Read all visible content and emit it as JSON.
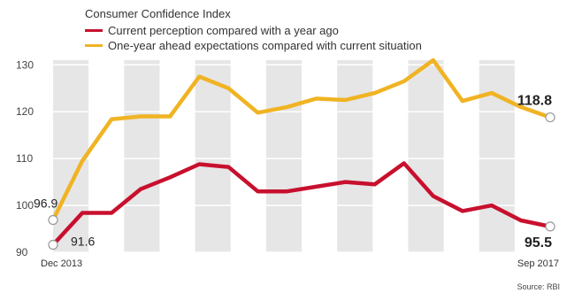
{
  "chart_data": {
    "type": "line",
    "title": "Consumer Confidence Index",
    "x_start_label": "Dec 2013",
    "x_end_label": "Sep 2017",
    "ylim": [
      90,
      131
    ],
    "yticks": [
      90,
      100,
      110,
      120,
      130
    ],
    "grid": true,
    "series": [
      {
        "name": "Current perception compared with a year ago",
        "color": "#c8102e",
        "values": [
          91.6,
          98.4,
          98.4,
          103.5,
          106.0,
          108.8,
          108.2,
          103.0,
          103.0,
          104.0,
          105.0,
          104.5,
          109.0,
          102.0,
          98.8,
          100.0,
          96.8,
          95.5
        ],
        "start_label": "91.6",
        "end_label": "95.5"
      },
      {
        "name": "One-year ahead expectations compared with current situation",
        "color": "#f0b323",
        "values": [
          96.9,
          109.5,
          118.4,
          119.0,
          119.0,
          127.5,
          125.0,
          119.8,
          121.0,
          122.8,
          122.5,
          124.0,
          126.5,
          131.0,
          122.3,
          124.0,
          121.0,
          118.8
        ],
        "start_label": "96.9",
        "end_label": "118.8"
      }
    ]
  },
  "source": "Source: RBI"
}
